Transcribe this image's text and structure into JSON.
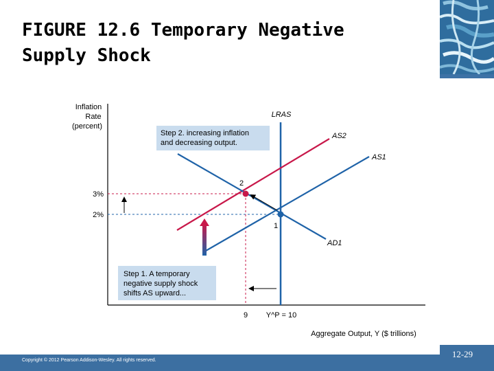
{
  "slide": {
    "title_line1": "FIGURE 12.6 Temporary Negative",
    "title_line2": "Supply Shock",
    "copyright": "Copyright © 2012 Pearson Addison-Wesley. All rights reserved.",
    "page_number": "12-29"
  },
  "diagram": {
    "y_axis_label": [
      "Inflation",
      "Rate",
      "(percent)"
    ],
    "x_axis_label": "Aggregate Output, Y ($ trillions)",
    "y_ticks": [
      "3%",
      "2%"
    ],
    "x_ticks": [
      "9",
      "Y^P = 10"
    ],
    "curves": {
      "lras": "LRAS",
      "as2": "AS2",
      "as1": "AS1",
      "ad1": "AD1"
    },
    "points": [
      "2",
      "1"
    ],
    "step1": [
      "Step 1. A temporary",
      "negative supply shock",
      "shifts AS upward..."
    ],
    "step2": [
      "Step 2. increasing inflation",
      "and decreasing output."
    ]
  },
  "colors": {
    "blue_curve": "#1f63a8",
    "red_curve": "#c8184a",
    "box_fill": "#c9dcee",
    "footer_bar": "#3c6fa1"
  },
  "icons": [
    "mosaic-decoration"
  ]
}
